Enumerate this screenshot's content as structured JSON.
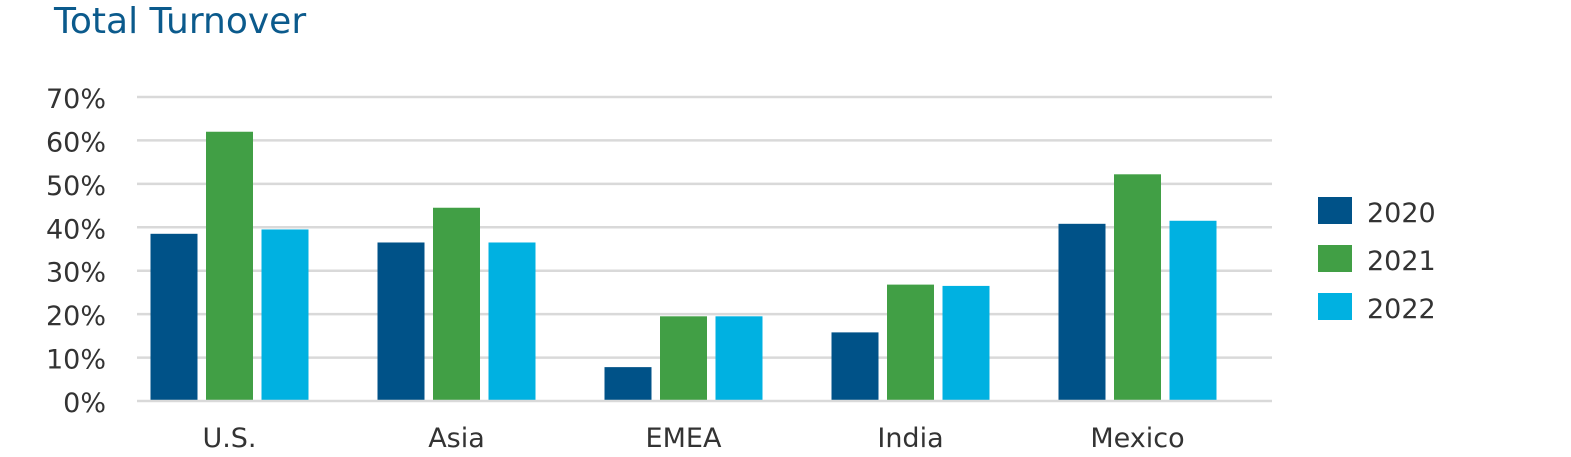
{
  "chart_data": {
    "type": "bar",
    "title": "Total Turnover",
    "xlabel": "",
    "ylabel": "",
    "categories": [
      "U.S.",
      "Asia",
      "EMEA",
      "India",
      "Mexico"
    ],
    "series": [
      {
        "name": "2020",
        "color": "#005288",
        "values": [
          38.5,
          36.5,
          7.8,
          15.8,
          40.8
        ]
      },
      {
        "name": "2021",
        "color": "#419f45",
        "values": [
          62,
          44.5,
          19.5,
          26.8,
          52.2
        ]
      },
      {
        "name": "2022",
        "color": "#00b1e1",
        "values": [
          39.5,
          36.5,
          19.5,
          26.5,
          41.5
        ]
      }
    ],
    "ylim": [
      0,
      70
    ],
    "yticks": [
      0,
      10,
      20,
      30,
      40,
      50,
      60,
      70
    ],
    "ytick_labels": [
      "0%",
      "10%",
      "20%",
      "30%",
      "40%",
      "50%",
      "60%",
      "70%"
    ],
    "grid": true,
    "legend": "right"
  }
}
